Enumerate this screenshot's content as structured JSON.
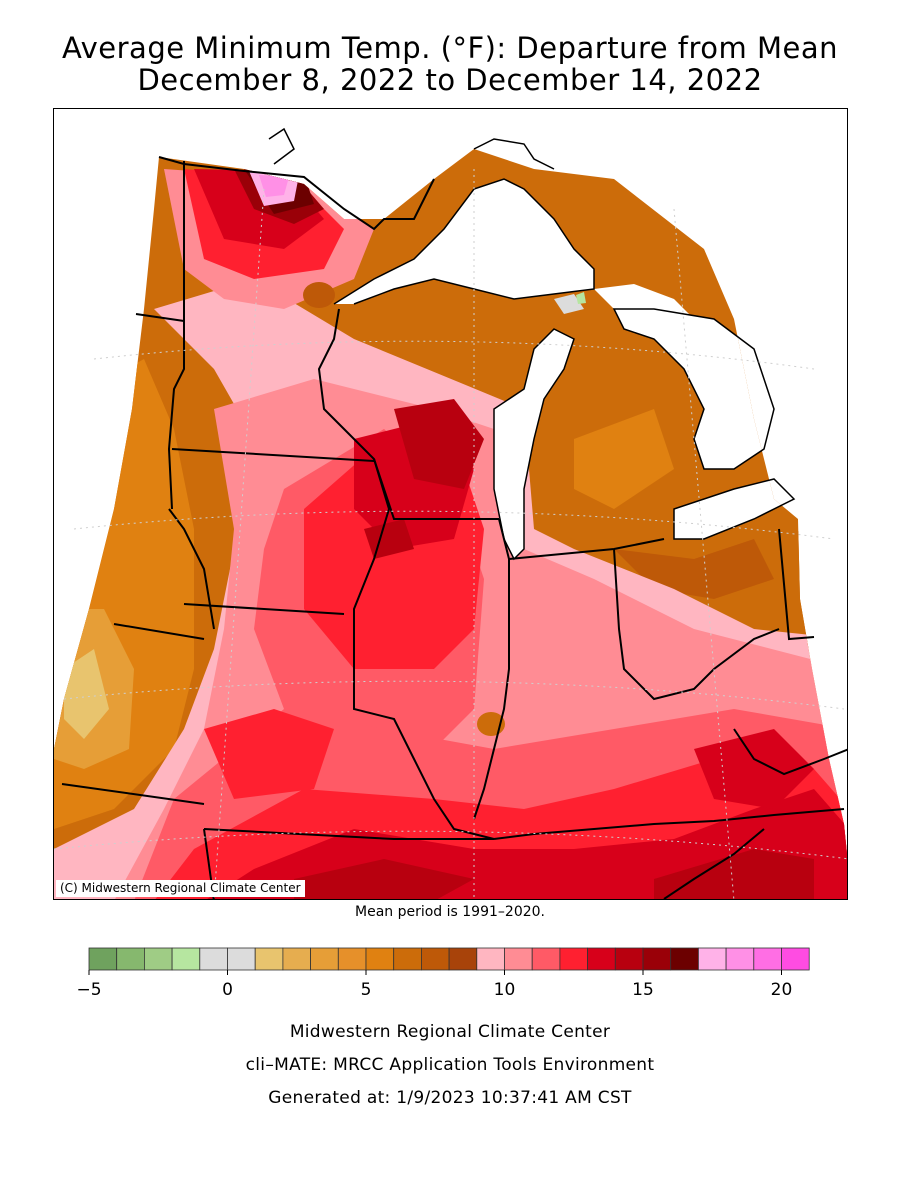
{
  "title": {
    "line1": "Average Minimum Temp. (°F): Departure from Mean",
    "line2": "December 8, 2022 to December 14, 2022"
  },
  "map": {
    "copyright": "(C) Midwestern Regional Climate Center",
    "mean_period": "Mean period is 1991–2020."
  },
  "legend": {
    "colors": [
      "#6fa25e",
      "#86b86e",
      "#9fcc85",
      "#b6e6a0",
      "#dcdcdc",
      "#dcdcdc",
      "#e8c46e",
      "#e6ad4f",
      "#e69e37",
      "#e6902a",
      "#e08111",
      "#cc6c0a",
      "#be5908",
      "#a8430a",
      "#ffb6c1",
      "#ff8c94",
      "#ff5a66",
      "#ff2030",
      "#d7001a",
      "#b8000f",
      "#9a0008",
      "#6c0000",
      "#ffb2e8",
      "#ff90e6",
      "#ff6ee4",
      "#ff4ce2"
    ],
    "ticks": [
      {
        "value": -5,
        "label": "−5"
      },
      {
        "value": 0,
        "label": "0"
      },
      {
        "value": 5,
        "label": "5"
      },
      {
        "value": 10,
        "label": "10"
      },
      {
        "value": 15,
        "label": "15"
      },
      {
        "value": 20,
        "label": "20"
      }
    ],
    "min": -5,
    "step": 1
  },
  "footer": {
    "line1": "Midwestern Regional Climate Center",
    "line2": "cli–MATE: MRCC Application Tools Environment",
    "line3": "Generated at: 1/9/2023 10:37:41 AM CST"
  }
}
